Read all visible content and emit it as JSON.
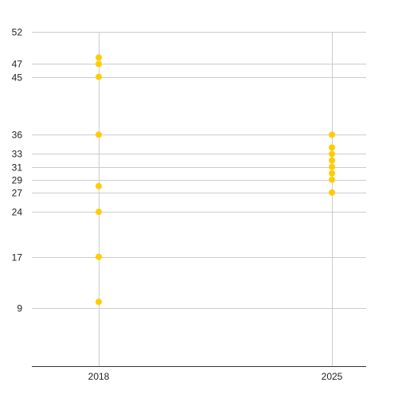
{
  "chart_data": {
    "type": "scatter",
    "title": "",
    "xlabel": "",
    "ylabel": "",
    "categories": [
      "2018",
      "2025"
    ],
    "y_ticks": [
      9,
      17,
      24,
      27,
      29,
      31,
      33,
      36,
      45,
      47,
      52
    ],
    "ylim": [
      0,
      52
    ],
    "grid": true,
    "legend": "none",
    "colors": {
      "point": "#FFCC00",
      "grid": "#CCCCCC",
      "axis": "#333333"
    },
    "series": [
      {
        "points": [
          {
            "x": "2018",
            "y": 48
          },
          {
            "x": "2018",
            "y": 47
          },
          {
            "x": "2018",
            "y": 45
          },
          {
            "x": "2018",
            "y": 36
          },
          {
            "x": "2018",
            "y": 28
          },
          {
            "x": "2018",
            "y": 24
          },
          {
            "x": "2018",
            "y": 17
          },
          {
            "x": "2018",
            "y": 10
          },
          {
            "x": "2025",
            "y": 36
          },
          {
            "x": "2025",
            "y": 34
          },
          {
            "x": "2025",
            "y": 33
          },
          {
            "x": "2025",
            "y": 32
          },
          {
            "x": "2025",
            "y": 31
          },
          {
            "x": "2025",
            "y": 30
          },
          {
            "x": "2025",
            "y": 29
          },
          {
            "x": "2025",
            "y": 27
          }
        ]
      }
    ]
  }
}
